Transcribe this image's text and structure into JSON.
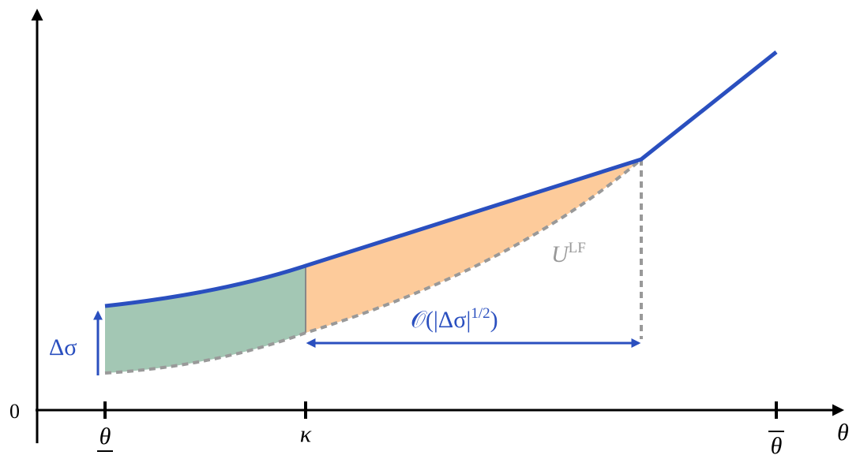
{
  "axis": {
    "origin": "0",
    "x_label": "θ",
    "ticks": [
      "θ",
      "κ",
      "θ"
    ]
  },
  "annotations": {
    "delta": "Δσ",
    "u_main": "U",
    "u_sup": "LF",
    "order_main": "𝒪(|Δσ|",
    "order_sup": "1/2",
    "order_close": ")"
  }
}
